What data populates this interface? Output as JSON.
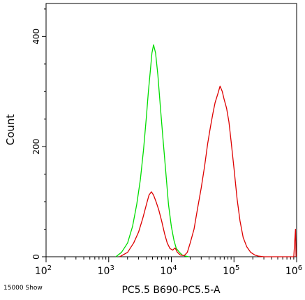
{
  "chart_data": {
    "type": "line",
    "title": "",
    "xlabel": "PC5.5 B690-PC5.5-A",
    "ylabel": "Count",
    "xscale": "log",
    "xlim": [
      100,
      1000000
    ],
    "ylim": [
      0,
      460
    ],
    "x_tick_labels": [
      {
        "base": "10",
        "exp": "2",
        "x": 100
      },
      {
        "base": "10",
        "exp": "3",
        "x": 1000
      },
      {
        "base": "10",
        "exp": "4",
        "x": 10000
      },
      {
        "base": "10",
        "exp": "5",
        "x": 100000
      },
      {
        "base": "10",
        "exp": "6",
        "x": 1000000
      }
    ],
    "y_ticks": [
      0,
      200,
      400
    ],
    "y_tick_labels": [
      "0",
      "200",
      "400"
    ],
    "grid": false,
    "legend": "none",
    "footer_note": "15000 Show",
    "series": [
      {
        "color": "#00dd00",
        "x": [
          1300,
          1600,
          2000,
          2400,
          2800,
          3200,
          3600,
          4000,
          4300,
          4600,
          4900,
          5200,
          5600,
          6100,
          6700,
          7400,
          8200,
          9000,
          10000,
          11000,
          12000,
          13500,
          15000,
          17000,
          19000
        ],
        "y": [
          0,
          8,
          25,
          55,
          95,
          140,
          195,
          255,
          300,
          335,
          370,
          385,
          370,
          330,
          270,
          210,
          150,
          95,
          55,
          30,
          15,
          8,
          3,
          1,
          0
        ]
      },
      {
        "color": "#dd0000",
        "x": [
          1500,
          2000,
          2500,
          3000,
          3500,
          4000,
          4400,
          4800,
          5200,
          5700,
          6300,
          7000,
          7800,
          8600,
          9500,
          10500,
          11500,
          12500,
          14000,
          16000,
          18000,
          20000,
          23000,
          26000,
          30000,
          34000,
          38000,
          42000,
          46000,
          50000,
          55000,
          60000,
          65000,
          70000,
          76000,
          83000,
          90000,
          100000,
          112000,
          125000,
          140000,
          160000,
          185000,
          215000,
          250000,
          300000,
          400000,
          600000,
          900000,
          960000,
          980000
        ],
        "y": [
          0,
          8,
          25,
          45,
          70,
          95,
          112,
          118,
          112,
          100,
          85,
          65,
          42,
          25,
          15,
          12,
          16,
          8,
          3,
          2,
          8,
          25,
          50,
          85,
          125,
          165,
          205,
          235,
          260,
          280,
          295,
          310,
          300,
          285,
          270,
          245,
          210,
          160,
          105,
          65,
          35,
          18,
          8,
          3,
          1,
          0,
          0,
          0,
          0,
          50,
          0
        ]
      }
    ]
  }
}
